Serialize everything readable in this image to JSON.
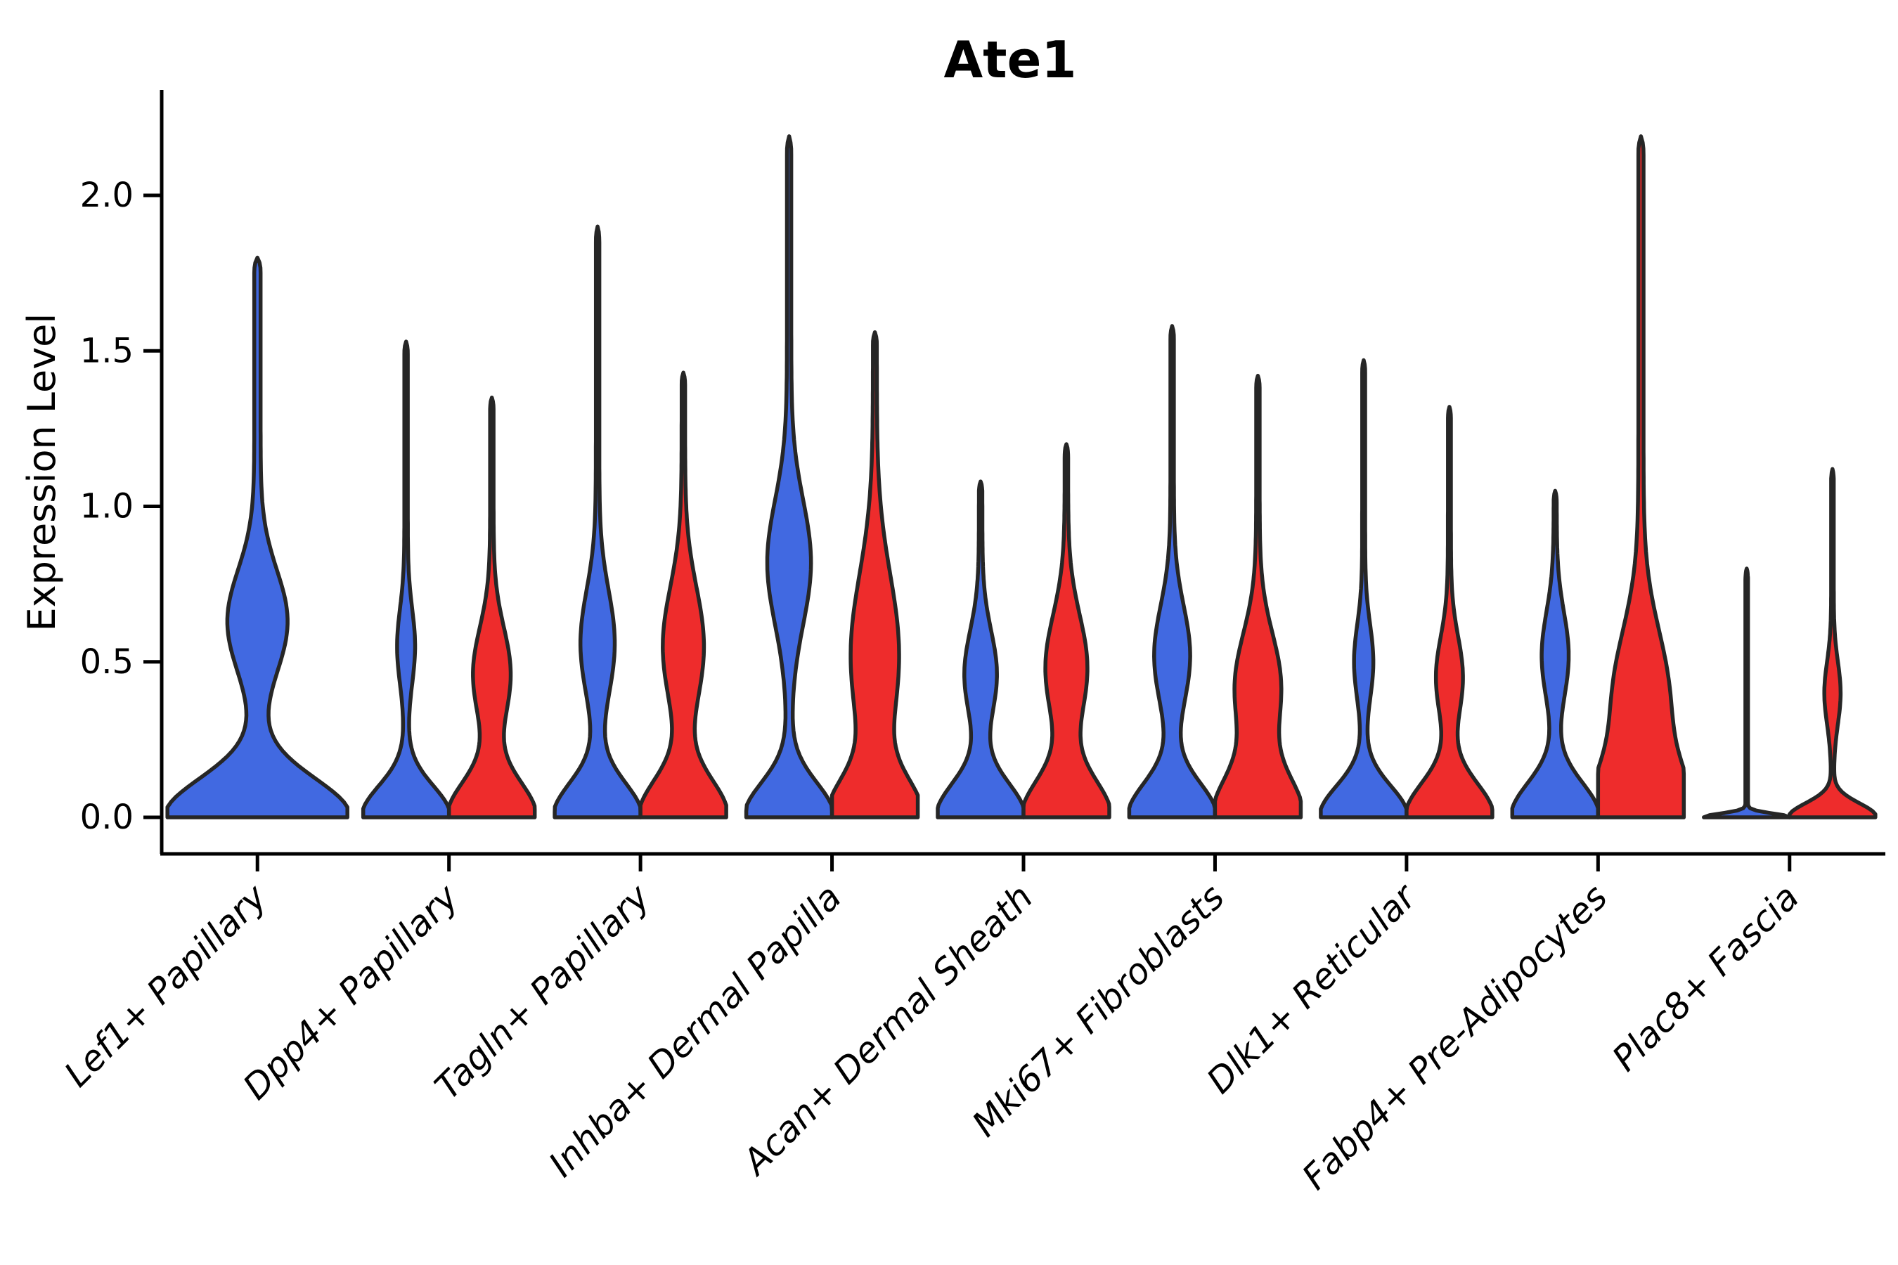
{
  "colors": {
    "blue_fill": "#4169E1",
    "red_fill": "#EE2C2C",
    "outline": "#262626",
    "axis": "#000000"
  },
  "chart_data": {
    "type": "violin",
    "title": "Ate1",
    "ylabel": "Expression Level",
    "xlabel": "",
    "grid": false,
    "legend": "none",
    "ylim": [
      -0.12,
      2.34
    ],
    "yticks": [
      {
        "value": 2.0,
        "label": "2.0"
      },
      {
        "value": 1.5,
        "label": "1.5"
      },
      {
        "value": 1.0,
        "label": "1.0"
      },
      {
        "value": 0.5,
        "label": "0.5"
      },
      {
        "value": 0.0,
        "label": "0.0"
      }
    ],
    "categories": [
      {
        "label": "Lef1+ Papillary",
        "violins": [
          {
            "sample": "blue",
            "max": 1.8,
            "mode_low": 0.0,
            "mode_high": 0.63,
            "profile": {
              "base_s": 0.125,
              "bulge_v": 0.63,
              "bulge_w": 0.3,
              "bulge_s": 0.165,
              "spike_w": 0.035
            },
            "layout": "single"
          }
        ]
      },
      {
        "label": "Dpp4+ Papillary",
        "violins": [
          {
            "sample": "blue",
            "max": 1.53,
            "mode_low": 0.0,
            "mode_high": 0.55,
            "profile": {
              "base_s": 0.1,
              "bulge_v": 0.55,
              "bulge_w": 0.17,
              "bulge_s": 0.12,
              "spike_w": 0.04
            }
          },
          {
            "sample": "red",
            "max": 1.35,
            "mode_low": 0.0,
            "mode_high": 0.46,
            "profile": {
              "base_s": 0.115,
              "bulge_v": 0.46,
              "bulge_w": 0.4,
              "bulge_s": 0.15,
              "spike_w": 0.04
            }
          }
        ]
      },
      {
        "label": "Tagln+ Papillary",
        "violins": [
          {
            "sample": "blue",
            "max": 1.9,
            "mode_low": 0.0,
            "mode_high": 0.56,
            "profile": {
              "base_s": 0.11,
              "bulge_v": 0.56,
              "bulge_w": 0.36,
              "bulge_s": 0.17,
              "spike_w": 0.04
            }
          },
          {
            "sample": "red",
            "max": 1.43,
            "mode_low": 0.0,
            "mode_high": 0.55,
            "profile": {
              "base_s": 0.12,
              "bulge_v": 0.55,
              "bulge_w": 0.44,
              "bulge_s": 0.19,
              "spike_w": 0.04
            }
          }
        ]
      },
      {
        "label": "Inhba+ Dermal Papilla",
        "violins": [
          {
            "sample": "blue",
            "max": 2.19,
            "mode_low": 0.0,
            "mode_high": 0.82,
            "profile": {
              "base_s": 0.11,
              "bulge_v": 0.82,
              "bulge_w": 0.46,
              "bulge_s": 0.2,
              "spike_w": 0.05
            }
          },
          {
            "sample": "red",
            "max": 1.56,
            "mode_low": 0.0,
            "mode_high": 0.52,
            "profile": {
              "base_s": 0.12,
              "bulge_v": 0.52,
              "bulge_w": 0.52,
              "bulge_s": 0.26,
              "spike_w": 0.045
            }
          }
        ]
      },
      {
        "label": "Acan+ Dermal Sheath",
        "violins": [
          {
            "sample": "blue",
            "max": 1.08,
            "mode_low": 0.0,
            "mode_high": 0.46,
            "profile": {
              "base_s": 0.11,
              "bulge_v": 0.46,
              "bulge_w": 0.34,
              "bulge_s": 0.14,
              "spike_w": 0.04
            }
          },
          {
            "sample": "red",
            "max": 1.2,
            "mode_low": 0.0,
            "mode_high": 0.48,
            "profile": {
              "base_s": 0.12,
              "bulge_v": 0.48,
              "bulge_w": 0.45,
              "bulge_s": 0.17,
              "spike_w": 0.04
            }
          }
        ]
      },
      {
        "label": "Mki67+ Fibroblasts",
        "violins": [
          {
            "sample": "blue",
            "max": 1.58,
            "mode_low": 0.0,
            "mode_high": 0.52,
            "profile": {
              "base_s": 0.11,
              "bulge_v": 0.52,
              "bulge_w": 0.38,
              "bulge_s": 0.16,
              "spike_w": 0.04
            }
          },
          {
            "sample": "red",
            "max": 1.42,
            "mode_low": 0.0,
            "mode_high": 0.42,
            "profile": {
              "base_s": 0.13,
              "bulge_v": 0.42,
              "bulge_w": 0.5,
              "bulge_s": 0.17,
              "spike_w": 0.04
            }
          }
        ]
      },
      {
        "label": "Dlk1+ Reticular",
        "violins": [
          {
            "sample": "blue",
            "max": 1.47,
            "mode_low": 0.0,
            "mode_high": 0.5,
            "profile": {
              "base_s": 0.1,
              "bulge_v": 0.5,
              "bulge_w": 0.19,
              "bulge_s": 0.12,
              "spike_w": 0.035
            }
          },
          {
            "sample": "red",
            "max": 1.32,
            "mode_low": 0.0,
            "mode_high": 0.45,
            "profile": {
              "base_s": 0.11,
              "bulge_v": 0.45,
              "bulge_w": 0.28,
              "bulge_s": 0.13,
              "spike_w": 0.035
            }
          }
        ]
      },
      {
        "label": "Fabp4+ Pre-Adipocytes",
        "violins": [
          {
            "sample": "blue",
            "max": 1.05,
            "mode_low": 0.0,
            "mode_high": 0.52,
            "profile": {
              "base_s": 0.11,
              "bulge_v": 0.52,
              "bulge_w": 0.28,
              "bulge_s": 0.14,
              "spike_w": 0.035
            }
          },
          {
            "sample": "red",
            "max": 2.19,
            "mode_low": 0.0,
            "mode_high": 0.38,
            "profile": {
              "base_s": 0.15,
              "bulge_v": 0.38,
              "bulge_w": 0.6,
              "bulge_s": 0.22,
              "spike_w": 0.06
            }
          }
        ]
      },
      {
        "label": "Plac8+ Fascia",
        "violins": [
          {
            "sample": "blue",
            "max": 0.8,
            "mode_low": 0.0,
            "mode_high": 0.0,
            "profile": {
              "base_s": 0.012,
              "bulge_v": 0.0,
              "bulge_w": 0.0,
              "bulge_s": 1.0,
              "spike_w": 0.03
            },
            "points": [
              0.16,
              0.2,
              0.33,
              0.36,
              0.385,
              0.41,
              0.435,
              0.46,
              0.485,
              0.51,
              0.545,
              0.575,
              0.6,
              0.64,
              0.68,
              0.72
            ]
          },
          {
            "sample": "red",
            "max": 1.12,
            "mode_low": 0.0,
            "mode_high": 0.4,
            "profile": {
              "base_s": 0.045,
              "bulge_v": 0.4,
              "bulge_w": 0.16,
              "bulge_s": 0.1,
              "spike_w": 0.03
            }
          }
        ]
      }
    ]
  }
}
